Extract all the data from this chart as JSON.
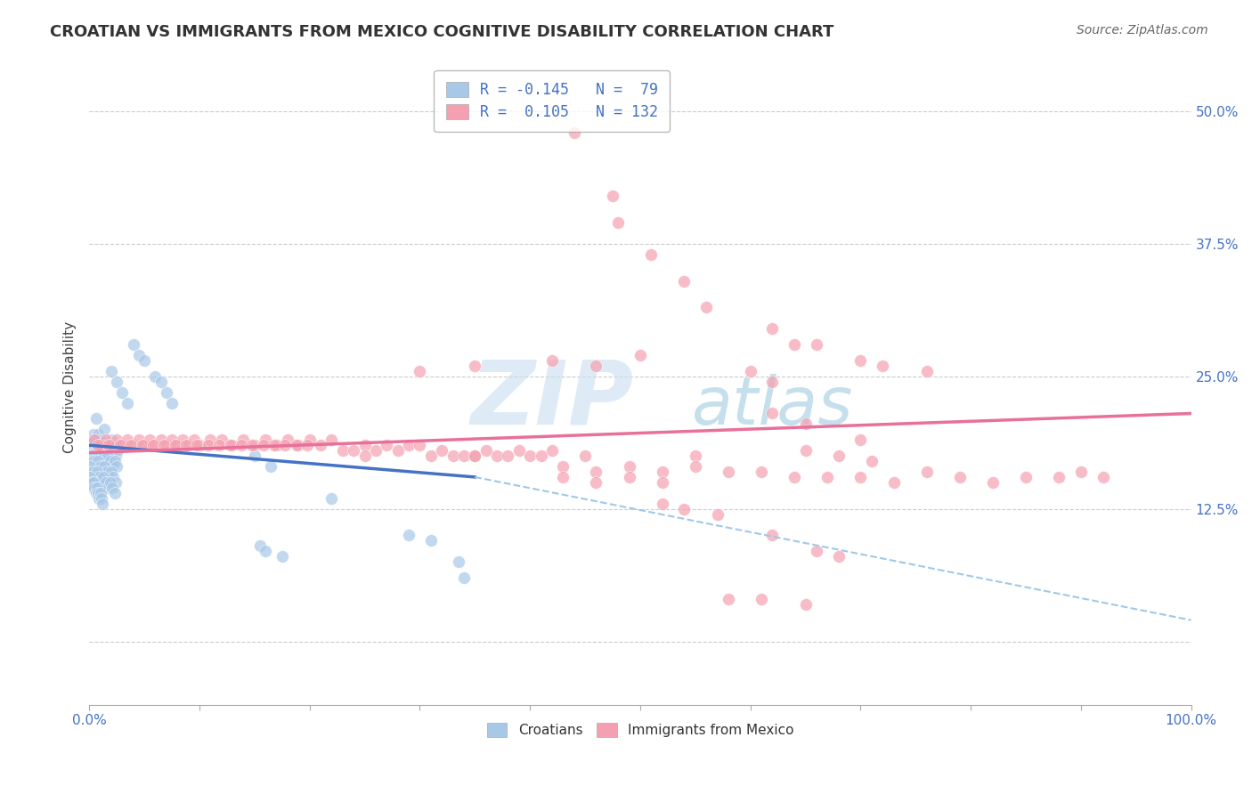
{
  "title": "CROATIAN VS IMMIGRANTS FROM MEXICO COGNITIVE DISABILITY CORRELATION CHART",
  "source": "Source: ZipAtlas.com",
  "ylabel": "Cognitive Disability",
  "xlim": [
    0.0,
    1.0
  ],
  "ylim": [
    -0.06,
    0.54
  ],
  "yticks": [
    0.0,
    0.125,
    0.25,
    0.375,
    0.5
  ],
  "ytick_labels": [
    "",
    "12.5%",
    "25.0%",
    "37.5%",
    "50.0%"
  ],
  "xticks": [
    0.0,
    0.1,
    0.2,
    0.3,
    0.4,
    0.5,
    0.6,
    0.7,
    0.8,
    0.9,
    1.0
  ],
  "xtick_labels": [
    "0.0%",
    "",
    "",
    "",
    "",
    "",
    "",
    "",
    "",
    "",
    "100.0%"
  ],
  "grid_color": "#cccccc",
  "background_color": "#ffffff",
  "title_fontsize": 13,
  "axis_label_fontsize": 11,
  "watermark_zip": "ZIP",
  "watermark_atlas": "atlas",
  "color_croatian": "#a8c8e8",
  "color_mexican": "#f4a0b0",
  "color_croatian_line": "#4472c4",
  "color_mexican_line": "#e8709a",
  "color_dashed": "#a0c8e8",
  "series_croatian": [
    [
      0.004,
      0.195
    ],
    [
      0.006,
      0.21
    ],
    [
      0.008,
      0.195
    ],
    [
      0.01,
      0.19
    ],
    [
      0.012,
      0.185
    ],
    [
      0.014,
      0.2
    ],
    [
      0.016,
      0.18
    ],
    [
      0.018,
      0.185
    ],
    [
      0.02,
      0.19
    ],
    [
      0.022,
      0.18
    ],
    [
      0.024,
      0.175
    ],
    [
      0.026,
      0.18
    ],
    [
      0.003,
      0.185
    ],
    [
      0.005,
      0.19
    ],
    [
      0.007,
      0.18
    ],
    [
      0.009,
      0.175
    ],
    [
      0.011,
      0.185
    ],
    [
      0.013,
      0.175
    ],
    [
      0.015,
      0.17
    ],
    [
      0.017,
      0.175
    ],
    [
      0.019,
      0.17
    ],
    [
      0.021,
      0.165
    ],
    [
      0.023,
      0.17
    ],
    [
      0.025,
      0.165
    ],
    [
      0.002,
      0.175
    ],
    [
      0.004,
      0.17
    ],
    [
      0.006,
      0.165
    ],
    [
      0.008,
      0.17
    ],
    [
      0.01,
      0.165
    ],
    [
      0.012,
      0.16
    ],
    [
      0.014,
      0.165
    ],
    [
      0.016,
      0.16
    ],
    [
      0.018,
      0.155
    ],
    [
      0.02,
      0.16
    ],
    [
      0.022,
      0.155
    ],
    [
      0.024,
      0.15
    ],
    [
      0.001,
      0.165
    ],
    [
      0.003,
      0.16
    ],
    [
      0.005,
      0.155
    ],
    [
      0.007,
      0.16
    ],
    [
      0.009,
      0.155
    ],
    [
      0.011,
      0.15
    ],
    [
      0.013,
      0.155
    ],
    [
      0.015,
      0.15
    ],
    [
      0.017,
      0.145
    ],
    [
      0.019,
      0.15
    ],
    [
      0.021,
      0.145
    ],
    [
      0.023,
      0.14
    ],
    [
      0.001,
      0.155
    ],
    [
      0.002,
      0.15
    ],
    [
      0.003,
      0.145
    ],
    [
      0.004,
      0.15
    ],
    [
      0.005,
      0.145
    ],
    [
      0.006,
      0.14
    ],
    [
      0.007,
      0.145
    ],
    [
      0.008,
      0.14
    ],
    [
      0.009,
      0.135
    ],
    [
      0.01,
      0.14
    ],
    [
      0.011,
      0.135
    ],
    [
      0.012,
      0.13
    ],
    [
      0.04,
      0.28
    ],
    [
      0.045,
      0.27
    ],
    [
      0.05,
      0.265
    ],
    [
      0.06,
      0.25
    ],
    [
      0.065,
      0.245
    ],
    [
      0.02,
      0.255
    ],
    [
      0.025,
      0.245
    ],
    [
      0.07,
      0.235
    ],
    [
      0.075,
      0.225
    ],
    [
      0.03,
      0.235
    ],
    [
      0.035,
      0.225
    ],
    [
      0.15,
      0.175
    ],
    [
      0.165,
      0.165
    ],
    [
      0.22,
      0.135
    ],
    [
      0.29,
      0.1
    ],
    [
      0.31,
      0.095
    ],
    [
      0.335,
      0.075
    ],
    [
      0.34,
      0.06
    ],
    [
      0.155,
      0.09
    ],
    [
      0.16,
      0.085
    ],
    [
      0.175,
      0.08
    ]
  ],
  "series_mexican": [
    [
      0.005,
      0.19
    ],
    [
      0.01,
      0.185
    ],
    [
      0.015,
      0.19
    ],
    [
      0.02,
      0.185
    ],
    [
      0.025,
      0.19
    ],
    [
      0.03,
      0.185
    ],
    [
      0.035,
      0.19
    ],
    [
      0.04,
      0.185
    ],
    [
      0.045,
      0.19
    ],
    [
      0.05,
      0.185
    ],
    [
      0.055,
      0.19
    ],
    [
      0.06,
      0.185
    ],
    [
      0.065,
      0.19
    ],
    [
      0.07,
      0.185
    ],
    [
      0.075,
      0.19
    ],
    [
      0.08,
      0.185
    ],
    [
      0.085,
      0.19
    ],
    [
      0.09,
      0.185
    ],
    [
      0.095,
      0.19
    ],
    [
      0.1,
      0.185
    ],
    [
      0.11,
      0.19
    ],
    [
      0.12,
      0.19
    ],
    [
      0.13,
      0.185
    ],
    [
      0.14,
      0.19
    ],
    [
      0.15,
      0.185
    ],
    [
      0.16,
      0.19
    ],
    [
      0.17,
      0.185
    ],
    [
      0.18,
      0.19
    ],
    [
      0.19,
      0.185
    ],
    [
      0.2,
      0.19
    ],
    [
      0.21,
      0.185
    ],
    [
      0.22,
      0.19
    ],
    [
      0.008,
      0.185
    ],
    [
      0.018,
      0.185
    ],
    [
      0.028,
      0.185
    ],
    [
      0.038,
      0.185
    ],
    [
      0.048,
      0.185
    ],
    [
      0.058,
      0.185
    ],
    [
      0.068,
      0.185
    ],
    [
      0.078,
      0.185
    ],
    [
      0.088,
      0.185
    ],
    [
      0.098,
      0.185
    ],
    [
      0.108,
      0.185
    ],
    [
      0.118,
      0.185
    ],
    [
      0.128,
      0.185
    ],
    [
      0.138,
      0.185
    ],
    [
      0.148,
      0.185
    ],
    [
      0.158,
      0.185
    ],
    [
      0.168,
      0.185
    ],
    [
      0.178,
      0.185
    ],
    [
      0.188,
      0.185
    ],
    [
      0.198,
      0.185
    ],
    [
      0.23,
      0.18
    ],
    [
      0.24,
      0.18
    ],
    [
      0.25,
      0.185
    ],
    [
      0.26,
      0.18
    ],
    [
      0.27,
      0.185
    ],
    [
      0.28,
      0.18
    ],
    [
      0.29,
      0.185
    ],
    [
      0.3,
      0.185
    ],
    [
      0.31,
      0.175
    ],
    [
      0.32,
      0.18
    ],
    [
      0.33,
      0.175
    ],
    [
      0.34,
      0.175
    ],
    [
      0.35,
      0.175
    ],
    [
      0.36,
      0.18
    ],
    [
      0.37,
      0.175
    ],
    [
      0.38,
      0.175
    ],
    [
      0.39,
      0.18
    ],
    [
      0.4,
      0.175
    ],
    [
      0.41,
      0.175
    ],
    [
      0.42,
      0.18
    ],
    [
      0.25,
      0.175
    ],
    [
      0.35,
      0.175
    ],
    [
      0.45,
      0.175
    ],
    [
      0.55,
      0.175
    ],
    [
      0.43,
      0.165
    ],
    [
      0.46,
      0.16
    ],
    [
      0.49,
      0.165
    ],
    [
      0.52,
      0.16
    ],
    [
      0.55,
      0.165
    ],
    [
      0.58,
      0.16
    ],
    [
      0.61,
      0.16
    ],
    [
      0.64,
      0.155
    ],
    [
      0.67,
      0.155
    ],
    [
      0.7,
      0.155
    ],
    [
      0.73,
      0.15
    ],
    [
      0.76,
      0.16
    ],
    [
      0.79,
      0.155
    ],
    [
      0.82,
      0.15
    ],
    [
      0.85,
      0.155
    ],
    [
      0.88,
      0.155
    ],
    [
      0.43,
      0.155
    ],
    [
      0.46,
      0.15
    ],
    [
      0.49,
      0.155
    ],
    [
      0.52,
      0.15
    ],
    [
      0.44,
      0.48
    ],
    [
      0.475,
      0.42
    ],
    [
      0.48,
      0.395
    ],
    [
      0.51,
      0.365
    ],
    [
      0.54,
      0.34
    ],
    [
      0.56,
      0.315
    ],
    [
      0.62,
      0.295
    ],
    [
      0.64,
      0.28
    ],
    [
      0.66,
      0.28
    ],
    [
      0.7,
      0.265
    ],
    [
      0.72,
      0.26
    ],
    [
      0.76,
      0.255
    ],
    [
      0.42,
      0.265
    ],
    [
      0.46,
      0.26
    ],
    [
      0.5,
      0.27
    ],
    [
      0.3,
      0.255
    ],
    [
      0.35,
      0.26
    ],
    [
      0.6,
      0.255
    ],
    [
      0.62,
      0.245
    ],
    [
      0.62,
      0.215
    ],
    [
      0.65,
      0.205
    ],
    [
      0.7,
      0.19
    ],
    [
      0.65,
      0.18
    ],
    [
      0.68,
      0.175
    ],
    [
      0.71,
      0.17
    ],
    [
      0.52,
      0.13
    ],
    [
      0.54,
      0.125
    ],
    [
      0.57,
      0.12
    ],
    [
      0.62,
      0.1
    ],
    [
      0.66,
      0.085
    ],
    [
      0.68,
      0.08
    ],
    [
      0.58,
      0.04
    ],
    [
      0.61,
      0.04
    ],
    [
      0.65,
      0.035
    ],
    [
      0.9,
      0.16
    ],
    [
      0.92,
      0.155
    ]
  ],
  "blue_line_x": [
    0.0,
    0.35
  ],
  "blue_line_y": [
    0.185,
    0.155
  ],
  "pink_line_x": [
    0.0,
    1.0
  ],
  "pink_line_y": [
    0.178,
    0.215
  ],
  "dashed_line_x": [
    0.35,
    1.0
  ],
  "dashed_line_y": [
    0.155,
    0.02
  ]
}
